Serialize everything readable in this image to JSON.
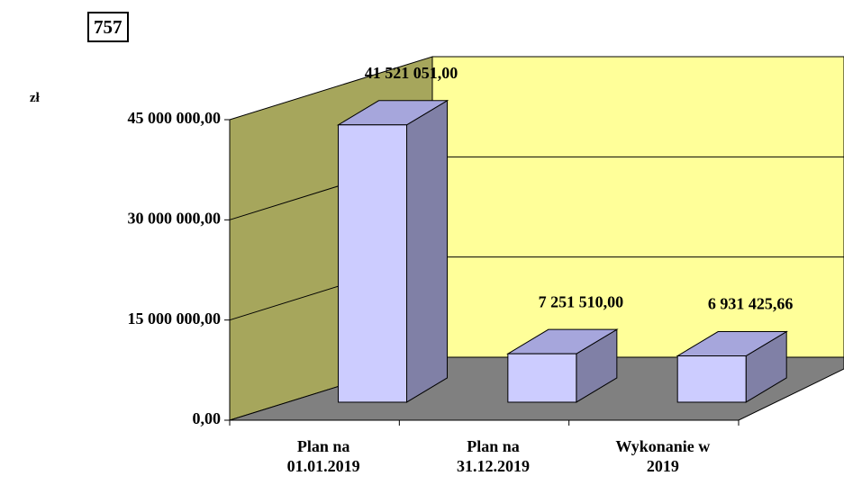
{
  "chart_data": {
    "type": "bar3d",
    "badge": "757",
    "unit": "zł",
    "categories": [
      "Plan na\n01.01.2019",
      "Plan na\n31.12.2019",
      "Wykonanie w\n2019"
    ],
    "values": [
      41521051.0,
      7251510.0,
      6931425.66
    ],
    "value_labels": [
      "41 521 051,00",
      "7 251 510,00",
      "6 931 425,66"
    ],
    "ylim": [
      0,
      45000000
    ],
    "yticks": [
      {
        "value": 0,
        "label": "0,00"
      },
      {
        "value": 15000000,
        "label": "15 000 000,00"
      },
      {
        "value": 30000000,
        "label": "30 000 000,00"
      },
      {
        "value": 45000000,
        "label": "45 000 000,00"
      }
    ],
    "grid": true,
    "colors": {
      "front": "#ccccff",
      "side": "#8080a6",
      "top": "#a6a6dc",
      "back_wall": "#ffff99",
      "side_wall": "#a6a65c",
      "floor": "#808080"
    }
  }
}
